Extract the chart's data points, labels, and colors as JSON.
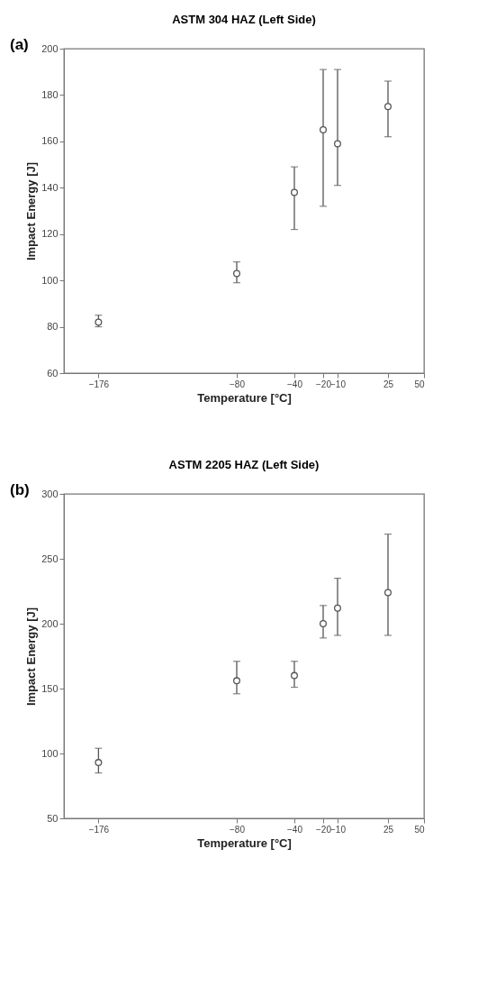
{
  "chart_data": [
    {
      "type": "scatter",
      "title": "ASTM 304 HAZ (Left Side)",
      "xlabel": "Temperature [°C]",
      "ylabel": "Impact Energy [J]",
      "annotations": [
        "(a)"
      ],
      "marker": "circle",
      "grid": false,
      "x": [
        -176,
        -80,
        -40,
        -20,
        -10,
        25
      ],
      "xlim": [
        -200,
        50
      ],
      "xticks": [
        -176,
        -80,
        -40,
        -20,
        -10,
        25,
        50
      ],
      "ylim": [
        60,
        200
      ],
      "yticks": [
        60,
        80,
        100,
        120,
        140,
        160,
        180,
        200
      ],
      "series": [
        {
          "color": "#555555",
          "values": [
            82,
            103,
            138,
            165,
            159,
            175
          ],
          "errors": [
            [
              80,
              85
            ],
            [
              99,
              108
            ],
            [
              122,
              149
            ],
            [
              132,
              191
            ],
            [
              141,
              191
            ],
            [
              162,
              186
            ]
          ]
        }
      ]
    },
    {
      "type": "scatter",
      "title": "ASTM 2205 HAZ (Left Side)",
      "xlabel": "Temperature [°C]",
      "ylabel": "Impact Energy [J]",
      "annotations": [
        "(b)"
      ],
      "marker": "circle",
      "grid": false,
      "x": [
        -176,
        -80,
        -40,
        -20,
        -10,
        25
      ],
      "xlim": [
        -200,
        50
      ],
      "xticks": [
        -176,
        -80,
        -40,
        -20,
        -10,
        25,
        50
      ],
      "ylim": [
        50,
        300
      ],
      "yticks": [
        50,
        100,
        150,
        200,
        250,
        300
      ],
      "series": [
        {
          "color": "#555555",
          "values": [
            93,
            156,
            160,
            200,
            212,
            224
          ],
          "errors": [
            [
              85,
              104
            ],
            [
              146,
              171
            ],
            [
              151,
              171
            ],
            [
              189,
              214
            ],
            [
              191,
              235
            ],
            [
              191,
              269
            ]
          ]
        }
      ]
    }
  ]
}
